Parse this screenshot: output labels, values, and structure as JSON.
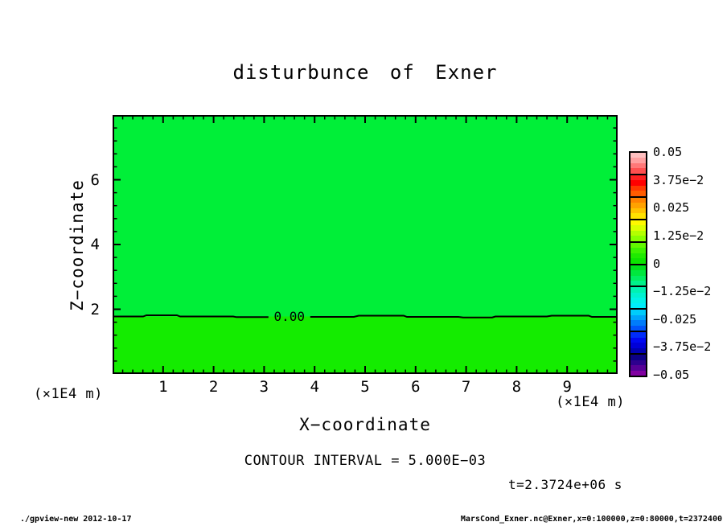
{
  "figure": {
    "title": "disturbunce of Exner",
    "contour_note": "CONTOUR INTERVAL = 5.000E−03",
    "time_note": "t=2.3724e+06 s",
    "footer_left": "./gpview-new  2012-10-17",
    "footer_right": "MarsCond_Exner.nc@Exner,x=0:100000,z=0:80000,t=2372400"
  },
  "axes": {
    "xlabel": "X−coordinate",
    "ylabel": "Z−coordinate",
    "x_unit_left": "(×1E4 m)",
    "x_unit_right": "(×1E4 m)"
  },
  "chart_data": {
    "type": "heatmap",
    "title": "disturbunce of Exner",
    "xlabel": "X-coordinate (x1E4 m)",
    "ylabel": "Z-coordinate (x1E4 m)",
    "xlim": [
      0,
      10
    ],
    "ylim": [
      0,
      8
    ],
    "x_major_ticks": [
      1,
      2,
      3,
      4,
      5,
      6,
      7,
      8,
      9
    ],
    "x_minor_step": 0.2,
    "y_major_ticks": [
      2,
      4,
      6
    ],
    "y_minor_step": 0.4,
    "contour_interval": 0.005,
    "contour_interval_label": "CONTOUR INTERVAL = 5.000E-03",
    "time_seconds": 2372400,
    "time_label": "t=2.3724e+06 s",
    "contours": [
      {
        "level": 0.0,
        "label": "0.00",
        "z": 1.8,
        "label_x": 3.5
      }
    ],
    "fill_regions": [
      {
        "name": "above-zero-contour",
        "z_range": [
          1.8,
          8
        ],
        "value_bin": "0 to -1.25e-2",
        "color": "#00ef38"
      },
      {
        "name": "below-zero-contour",
        "z_range": [
          0,
          1.8
        ],
        "value_bin": "0 to +1.25e-2",
        "color": "#14ec00"
      }
    ],
    "legend_position": "right-colorbar",
    "grid": false
  },
  "colorbar": {
    "labels": [
      "0.05",
      "3.75e−2",
      "0.025",
      "1.25e−2",
      "0",
      "−1.25e−2",
      "−0.025",
      "−3.75e−2",
      "−0.05"
    ],
    "values": [
      0.05,
      0.0375,
      0.025,
      0.0125,
      0,
      -0.0125,
      -0.025,
      -0.0375,
      -0.05
    ],
    "blocks": [
      [
        "#ffc0c0",
        "#ffa0a0",
        "#ff7878",
        "#ff5050"
      ],
      [
        "#ff2020",
        "#ff0000",
        "#ff3800",
        "#ff5c00"
      ],
      [
        "#ff8200",
        "#ffa200",
        "#ffc200",
        "#ffe200"
      ],
      [
        "#fff800",
        "#dcff00",
        "#b4ff00",
        "#8aff00"
      ],
      [
        "#62f800",
        "#3df200",
        "#1fea00",
        "#0ce400"
      ],
      [
        "#00e11c",
        "#00e83e",
        "#00ee62",
        "#00f18a"
      ],
      [
        "#00f2b2",
        "#00f2d0",
        "#00f2e8",
        "#00edfa"
      ],
      [
        "#00ccfa",
        "#00a4fa",
        "#007cfa",
        "#0054fa"
      ],
      [
        "#002cfa",
        "#0008f2",
        "#0000d8",
        "#0000b0"
      ],
      [
        "#0c0086",
        "#2e008e",
        "#560096",
        "#8000a0"
      ]
    ]
  }
}
